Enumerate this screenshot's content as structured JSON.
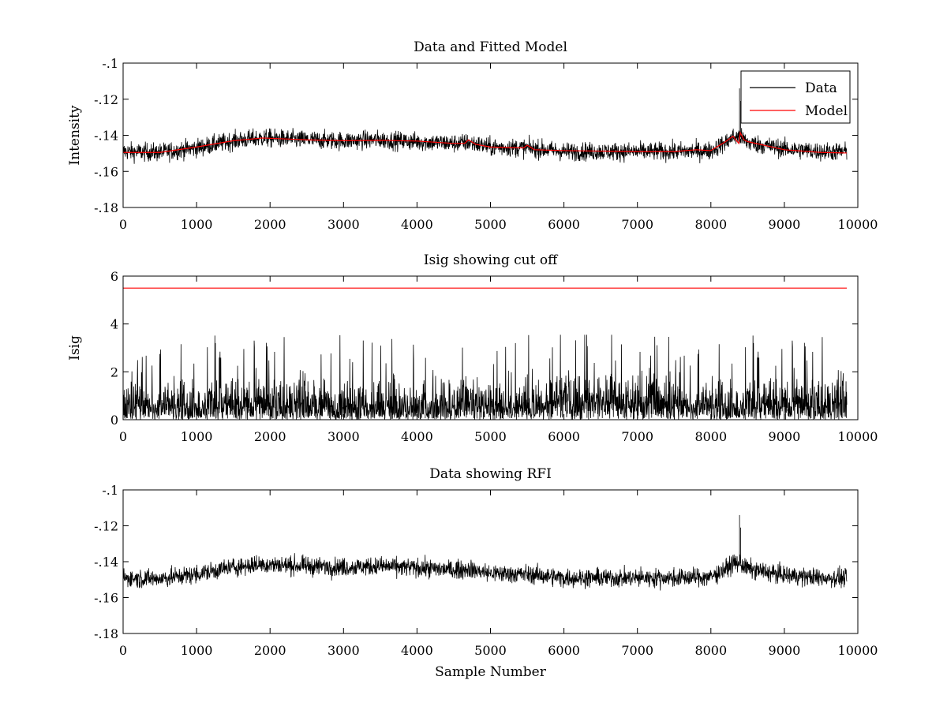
{
  "colors": {
    "data": "#000000",
    "model": "#ff0000",
    "cutoff": "#ff0000",
    "axes": "#000000",
    "background": "#ffffff"
  },
  "chart_data": [
    {
      "type": "line",
      "title": "Data and Fitted Model",
      "xlabel": "",
      "ylabel": "Intensity",
      "xlim": [
        0,
        10000
      ],
      "ylim": [
        -0.18,
        -0.1
      ],
      "xticks": [
        0,
        1000,
        2000,
        3000,
        4000,
        5000,
        6000,
        7000,
        8000,
        9000,
        10000
      ],
      "yticks": [
        -0.18,
        -0.16,
        -0.14,
        -0.12,
        -0.1
      ],
      "grid": false,
      "legend": {
        "position": "top-right",
        "entries": [
          "Data",
          "Model"
        ]
      },
      "series": [
        {
          "name": "Data",
          "color": "#000000",
          "kind": "noisy",
          "x_range": [
            0,
            9850
          ],
          "noise_half_width": 0.006,
          "baseline": [
            [
              0,
              -0.149
            ],
            [
              500,
              -0.1495
            ],
            [
              1000,
              -0.147
            ],
            [
              1500,
              -0.143
            ],
            [
              1900,
              -0.1415
            ],
            [
              2500,
              -0.1425
            ],
            [
              3000,
              -0.143
            ],
            [
              3500,
              -0.1425
            ],
            [
              4000,
              -0.1435
            ],
            [
              4500,
              -0.1445
            ],
            [
              4700,
              -0.144
            ],
            [
              5000,
              -0.1465
            ],
            [
              5500,
              -0.147
            ],
            [
              6000,
              -0.149
            ],
            [
              6500,
              -0.149
            ],
            [
              7000,
              -0.149
            ],
            [
              7500,
              -0.149
            ],
            [
              8000,
              -0.1485
            ],
            [
              8200,
              -0.144
            ],
            [
              8300,
              -0.141
            ],
            [
              8400,
              -0.141
            ],
            [
              8500,
              -0.144
            ],
            [
              9000,
              -0.1475
            ],
            [
              9500,
              -0.149
            ],
            [
              9850,
              -0.149
            ]
          ],
          "spikes": [
            [
              8390,
              -0.114
            ],
            [
              8405,
              -0.121
            ]
          ]
        },
        {
          "name": "Model",
          "color": "#ff0000",
          "kind": "line",
          "points": [
            [
              0,
              -0.1495
            ],
            [
              500,
              -0.1495
            ],
            [
              1000,
              -0.1465
            ],
            [
              1500,
              -0.143
            ],
            [
              1900,
              -0.1415
            ],
            [
              2500,
              -0.1425
            ],
            [
              3000,
              -0.143
            ],
            [
              3500,
              -0.1428
            ],
            [
              4000,
              -0.1432
            ],
            [
              4500,
              -0.1445
            ],
            [
              4650,
              -0.1445
            ],
            [
              4700,
              -0.1425
            ],
            [
              4800,
              -0.145
            ],
            [
              5000,
              -0.1465
            ],
            [
              5450,
              -0.147
            ],
            [
              5500,
              -0.1455
            ],
            [
              5600,
              -0.148
            ],
            [
              6000,
              -0.1485
            ],
            [
              7000,
              -0.149
            ],
            [
              7500,
              -0.149
            ],
            [
              7800,
              -0.148
            ],
            [
              8000,
              -0.1485
            ],
            [
              8200,
              -0.1435
            ],
            [
              8300,
              -0.1405
            ],
            [
              8380,
              -0.1445
            ],
            [
              8400,
              -0.1385
            ],
            [
              8450,
              -0.1425
            ],
            [
              8500,
              -0.1435
            ],
            [
              9000,
              -0.148
            ],
            [
              9500,
              -0.1495
            ],
            [
              9850,
              -0.1498
            ]
          ]
        }
      ]
    },
    {
      "type": "line",
      "title": "Isig showing cut off",
      "xlabel": "",
      "ylabel": "Isig",
      "xlim": [
        0,
        10000
      ],
      "ylim": [
        0,
        6
      ],
      "xticks": [
        0,
        1000,
        2000,
        3000,
        4000,
        5000,
        6000,
        7000,
        8000,
        9000,
        10000
      ],
      "yticks": [
        0,
        2,
        4,
        6
      ],
      "grid": false,
      "series": [
        {
          "color": "#000000",
          "kind": "isig",
          "x_range": [
            0,
            9850
          ],
          "typical_max": 2.2,
          "peak_max": 3.55,
          "elevated_region": [
            5800,
            7300
          ]
        },
        {
          "color": "#ff0000",
          "kind": "constant",
          "x_range": [
            0,
            9850
          ],
          "value": 5.5
        }
      ]
    },
    {
      "type": "line",
      "title": "Data showing RFI",
      "xlabel": "Sample Number",
      "ylabel": "",
      "xlim": [
        0,
        10000
      ],
      "ylim": [
        -0.18,
        -0.1
      ],
      "xticks": [
        0,
        1000,
        2000,
        3000,
        4000,
        5000,
        6000,
        7000,
        8000,
        9000,
        10000
      ],
      "yticks": [
        -0.18,
        -0.16,
        -0.14,
        -0.12,
        -0.1
      ],
      "grid": false,
      "series": [
        {
          "color": "#000000",
          "kind": "noisy",
          "x_range": [
            0,
            9850
          ],
          "noise_half_width": 0.006,
          "baseline": [
            [
              0,
              -0.149
            ],
            [
              500,
              -0.1495
            ],
            [
              1000,
              -0.147
            ],
            [
              1500,
              -0.143
            ],
            [
              1900,
              -0.1415
            ],
            [
              2500,
              -0.1425
            ],
            [
              3000,
              -0.143
            ],
            [
              3500,
              -0.1425
            ],
            [
              4000,
              -0.1435
            ],
            [
              4500,
              -0.1445
            ],
            [
              4700,
              -0.144
            ],
            [
              5000,
              -0.1465
            ],
            [
              5500,
              -0.147
            ],
            [
              6000,
              -0.149
            ],
            [
              6500,
              -0.149
            ],
            [
              7000,
              -0.149
            ],
            [
              7500,
              -0.149
            ],
            [
              8000,
              -0.1485
            ],
            [
              8200,
              -0.144
            ],
            [
              8300,
              -0.141
            ],
            [
              8400,
              -0.141
            ],
            [
              8500,
              -0.144
            ],
            [
              9000,
              -0.1475
            ],
            [
              9500,
              -0.149
            ],
            [
              9850,
              -0.149
            ]
          ],
          "spikes": [
            [
              8390,
              -0.114
            ],
            [
              8405,
              -0.121
            ]
          ]
        }
      ]
    }
  ]
}
